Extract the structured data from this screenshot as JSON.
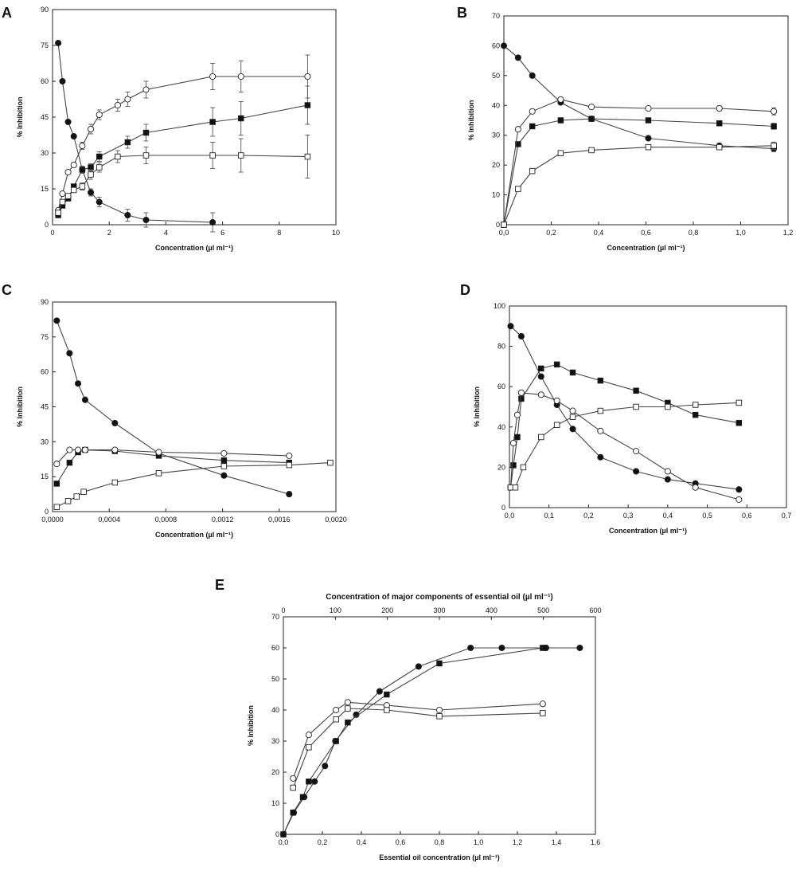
{
  "chart_data": [
    {
      "panel": "A",
      "type": "line",
      "xlabel": "Concentration (µl ml⁻¹)",
      "ylabel": "% Inhibition",
      "xlim": [
        0,
        10
      ],
      "ylim": [
        0,
        90
      ],
      "xticks": [
        "0",
        "2",
        "4",
        "6",
        "8",
        "10"
      ],
      "yticks": [
        "0",
        "15",
        "30",
        "45",
        "60",
        "75",
        "90"
      ],
      "xtickvals": [
        0,
        2,
        4,
        6,
        8,
        10
      ],
      "ytickvals": [
        0,
        15,
        30,
        45,
        60,
        75,
        90
      ],
      "series": [
        {
          "marker": "filled-circle",
          "x": [
            0.2,
            0.35,
            0.55,
            0.75,
            1.05,
            1.35,
            1.65,
            2.65,
            3.3,
            5.65
          ],
          "y": [
            76,
            60,
            43,
            37,
            23,
            13.5,
            9.5,
            4,
            2,
            1
          ],
          "err": [
            0,
            0,
            0,
            0,
            0,
            1.5,
            2,
            2.5,
            3,
            4
          ]
        },
        {
          "marker": "filled-square",
          "x": [
            0.2,
            0.35,
            0.55,
            0.75,
            1.05,
            1.35,
            1.65,
            2.65,
            3.3,
            5.65,
            6.65,
            9.0
          ],
          "y": [
            4,
            8,
            11,
            16,
            23,
            24,
            28.5,
            34.5,
            38.5,
            43,
            44.5,
            50
          ],
          "err": [
            0,
            0,
            0,
            1,
            1.5,
            1.5,
            2,
            2.5,
            3.5,
            6,
            7,
            8
          ]
        },
        {
          "marker": "open-circle",
          "x": [
            0.2,
            0.35,
            0.55,
            0.75,
            1.05,
            1.35,
            1.65,
            2.3,
            2.65,
            3.3,
            5.65,
            6.65,
            9.0
          ],
          "y": [
            6,
            13,
            22,
            25,
            33,
            40,
            46,
            50,
            52.5,
            56.5,
            62,
            62,
            62
          ],
          "err": [
            0,
            0,
            0,
            1,
            1.5,
            2,
            2,
            2.5,
            3,
            3.5,
            5.5,
            6.5,
            9
          ]
        },
        {
          "marker": "open-square",
          "x": [
            0.2,
            0.35,
            0.55,
            0.75,
            1.05,
            1.35,
            1.65,
            2.3,
            3.3,
            5.65,
            6.65,
            9.0
          ],
          "y": [
            5,
            9.5,
            12,
            14.5,
            16,
            21,
            24,
            28.5,
            29,
            29,
            29,
            28.5
          ],
          "err": [
            0,
            0,
            0,
            1,
            1.5,
            2,
            2,
            2.5,
            3.5,
            5.5,
            7,
            9
          ]
        }
      ]
    },
    {
      "panel": "B",
      "type": "line",
      "xlabel": "Concentration (µl ml⁻¹)",
      "ylabel": "% Inhibition",
      "xlim": [
        0,
        1.2
      ],
      "ylim": [
        0,
        70
      ],
      "xticks": [
        "0,0",
        "0,2",
        "0,4",
        "0,6",
        "0,8",
        "1,0",
        "1,2"
      ],
      "yticks": [
        "0",
        "10",
        "20",
        "30",
        "40",
        "50",
        "60",
        "70"
      ],
      "xtickvals": [
        0,
        0.2,
        0.4,
        0.6,
        0.8,
        1.0,
        1.2
      ],
      "ytickvals": [
        0,
        10,
        20,
        30,
        40,
        50,
        60,
        70
      ],
      "series": [
        {
          "marker": "filled-circle",
          "x": [
            0,
            0.06,
            0.12,
            0.24,
            0.37,
            0.61,
            0.91,
            1.14
          ],
          "y": [
            60,
            56,
            50,
            41,
            35.5,
            29,
            26.5,
            25.5
          ],
          "err": [
            0,
            0,
            0,
            0,
            0,
            0,
            0.5,
            1
          ]
        },
        {
          "marker": "filled-square",
          "x": [
            0,
            0.06,
            0.12,
            0.24,
            0.37,
            0.61,
            0.91,
            1.14
          ],
          "y": [
            0,
            27,
            33,
            35,
            35.5,
            35,
            34,
            33
          ],
          "err": [
            0,
            0,
            0,
            0,
            0,
            0,
            0.8,
            1
          ]
        },
        {
          "marker": "open-circle",
          "x": [
            0,
            0.06,
            0.12,
            0.24,
            0.37,
            0.61,
            0.91,
            1.14
          ],
          "y": [
            0,
            32,
            38,
            42,
            39.5,
            39,
            39,
            38
          ],
          "err": [
            0,
            0,
            0,
            0,
            0,
            0,
            0.8,
            1.2
          ]
        },
        {
          "marker": "open-square",
          "x": [
            0,
            0.06,
            0.12,
            0.24,
            0.37,
            0.61,
            0.91,
            1.14
          ],
          "y": [
            0,
            12,
            18,
            24,
            25,
            26,
            26,
            26.5
          ],
          "err": [
            0,
            0,
            0,
            0,
            0,
            0,
            0.8,
            1.2
          ]
        }
      ]
    },
    {
      "panel": "C",
      "type": "line",
      "xlabel": "Concentration (µl ml⁻¹)",
      "ylabel": "% Inhibition",
      "xlim": [
        0,
        0.002
      ],
      "ylim": [
        0,
        90
      ],
      "xticks": [
        "0,0000",
        "0,0004",
        "0,0008",
        "0,0012",
        "0,0016",
        "0,0020"
      ],
      "yticks": [
        "0",
        "15",
        "30",
        "45",
        "60",
        "75",
        "90"
      ],
      "xtickvals": [
        0,
        0.0004,
        0.0008,
        0.0012,
        0.0016,
        0.002
      ],
      "ytickvals": [
        0,
        15,
        30,
        45,
        60,
        75,
        90
      ],
      "series": [
        {
          "marker": "filled-circle",
          "x": [
            3e-05,
            0.00012,
            0.00018,
            0.00023,
            0.00044,
            0.00075,
            0.00121,
            0.00167
          ],
          "y": [
            82,
            68,
            55,
            48,
            38,
            25,
            15.5,
            7.5
          ]
        },
        {
          "marker": "filled-square",
          "x": [
            3e-05,
            0.00012,
            0.00018,
            0.00023,
            0.00044,
            0.00075,
            0.00121,
            0.00167
          ],
          "y": [
            12,
            21,
            25.5,
            26.5,
            26,
            24,
            22,
            21
          ]
        },
        {
          "marker": "open-circle",
          "x": [
            3e-05,
            0.00012,
            0.00018,
            0.00023,
            0.00044,
            0.00075,
            0.00121,
            0.00167
          ],
          "y": [
            20.5,
            26.5,
            26.5,
            26.5,
            26.5,
            25.5,
            25,
            24
          ]
        },
        {
          "marker": "open-square",
          "x": [
            3e-05,
            0.00011,
            0.00017,
            0.00022,
            0.00044,
            0.00075,
            0.00121,
            0.00167,
            0.00196
          ],
          "y": [
            2,
            4.5,
            6.5,
            8.5,
            12.5,
            16.5,
            19.5,
            20,
            21
          ]
        }
      ]
    },
    {
      "panel": "D",
      "type": "line",
      "xlabel": "Concentration (µl ml⁻¹)",
      "ylabel": "% Inhibition",
      "xlim": [
        0,
        0.7
      ],
      "ylim": [
        0,
        100
      ],
      "xticks": [
        "0,0",
        "0,1",
        "0,2",
        "0,3",
        "0,4",
        "0,5",
        "0,6",
        "0,7"
      ],
      "yticks": [
        "0",
        "20",
        "40",
        "60",
        "80",
        "100"
      ],
      "xtickvals": [
        0,
        0.1,
        0.2,
        0.3,
        0.4,
        0.5,
        0.6,
        0.7
      ],
      "ytickvals": [
        0,
        20,
        40,
        60,
        80,
        100
      ],
      "series": [
        {
          "marker": "filled-circle",
          "x": [
            0.003,
            0.03,
            0.08,
            0.12,
            0.16,
            0.23,
            0.32,
            0.4,
            0.47,
            0.58
          ],
          "y": [
            90,
            85,
            65,
            51,
            39,
            25,
            18,
            14,
            12,
            9
          ]
        },
        {
          "marker": "filled-square",
          "x": [
            0.003,
            0.01,
            0.02,
            0.03,
            0.08,
            0.12,
            0.16,
            0.23,
            0.32,
            0.4,
            0.47,
            0.58
          ],
          "y": [
            10,
            21,
            35,
            54,
            69,
            71,
            67,
            63,
            58,
            52,
            46,
            42
          ]
        },
        {
          "marker": "open-circle",
          "x": [
            0.003,
            0.01,
            0.02,
            0.03,
            0.08,
            0.12,
            0.16,
            0.23,
            0.32,
            0.4,
            0.47,
            0.58
          ],
          "y": [
            10,
            32,
            46,
            57,
            56,
            53,
            48,
            38,
            28,
            18,
            10,
            4
          ]
        },
        {
          "marker": "open-square",
          "x": [
            0.003,
            0.015,
            0.035,
            0.08,
            0.12,
            0.16,
            0.23,
            0.32,
            0.4,
            0.47,
            0.58
          ],
          "y": [
            10,
            10,
            20,
            35,
            41,
            45,
            48,
            50,
            50,
            51,
            52
          ]
        }
      ]
    },
    {
      "panel": "E",
      "type": "line",
      "xlabel": "Essential oil concentration (µl ml⁻¹)",
      "x2label": "Concentration of major components of essential oil  (µl ml⁻¹)",
      "ylabel": "% Inhibition",
      "xlim": [
        0,
        1.6
      ],
      "ylim": [
        0,
        70
      ],
      "x2lim": [
        0,
        600
      ],
      "xticks": [
        "0,0",
        "0,2",
        "0,4",
        "0,6",
        "0,8",
        "1,0",
        "1,2",
        "1,4",
        "1,6"
      ],
      "x2ticks": [
        "0",
        "100",
        "200",
        "300",
        "400",
        "500",
        "600"
      ],
      "yticks": [
        "0",
        "10",
        "20",
        "30",
        "40",
        "50",
        "60",
        "70"
      ],
      "xtickvals": [
        0,
        0.2,
        0.4,
        0.6,
        0.8,
        1.0,
        1.2,
        1.4,
        1.6
      ],
      "x2tickvals": [
        0,
        100,
        200,
        300,
        400,
        500,
        600
      ],
      "ytickvals": [
        0,
        10,
        20,
        30,
        40,
        50,
        60,
        70
      ],
      "series": [
        {
          "marker": "filled-circle",
          "axis": "top",
          "x": [
            0,
            20,
            40,
            60,
            80,
            100,
            140,
            185,
            260,
            360,
            420,
            505,
            570
          ],
          "y": [
            0,
            7,
            12,
            17,
            22,
            30,
            38.5,
            46,
            54,
            60,
            60,
            60,
            60
          ]
        },
        {
          "marker": "filled-square",
          "axis": "bottom",
          "x": [
            0,
            0.05,
            0.1,
            0.13,
            0.27,
            0.33,
            0.53,
            0.8,
            1.33,
            1.34
          ],
          "y": [
            0,
            7,
            12,
            17,
            30,
            36,
            45,
            55,
            60,
            60
          ]
        },
        {
          "marker": "open-circle",
          "axis": "bottom",
          "x": [
            0.05,
            0.13,
            0.27,
            0.33,
            0.53,
            0.8,
            1.33
          ],
          "y": [
            18,
            32,
            40,
            42.5,
            41.5,
            40,
            42
          ]
        },
        {
          "marker": "open-square",
          "axis": "bottom",
          "x": [
            0.05,
            0.13,
            0.27,
            0.33,
            0.53,
            0.8,
            1.33
          ],
          "y": [
            15,
            28,
            37,
            40.5,
            40,
            38,
            39
          ]
        }
      ]
    }
  ],
  "panel_letters": [
    "A",
    "B",
    "C",
    "D",
    "E"
  ]
}
